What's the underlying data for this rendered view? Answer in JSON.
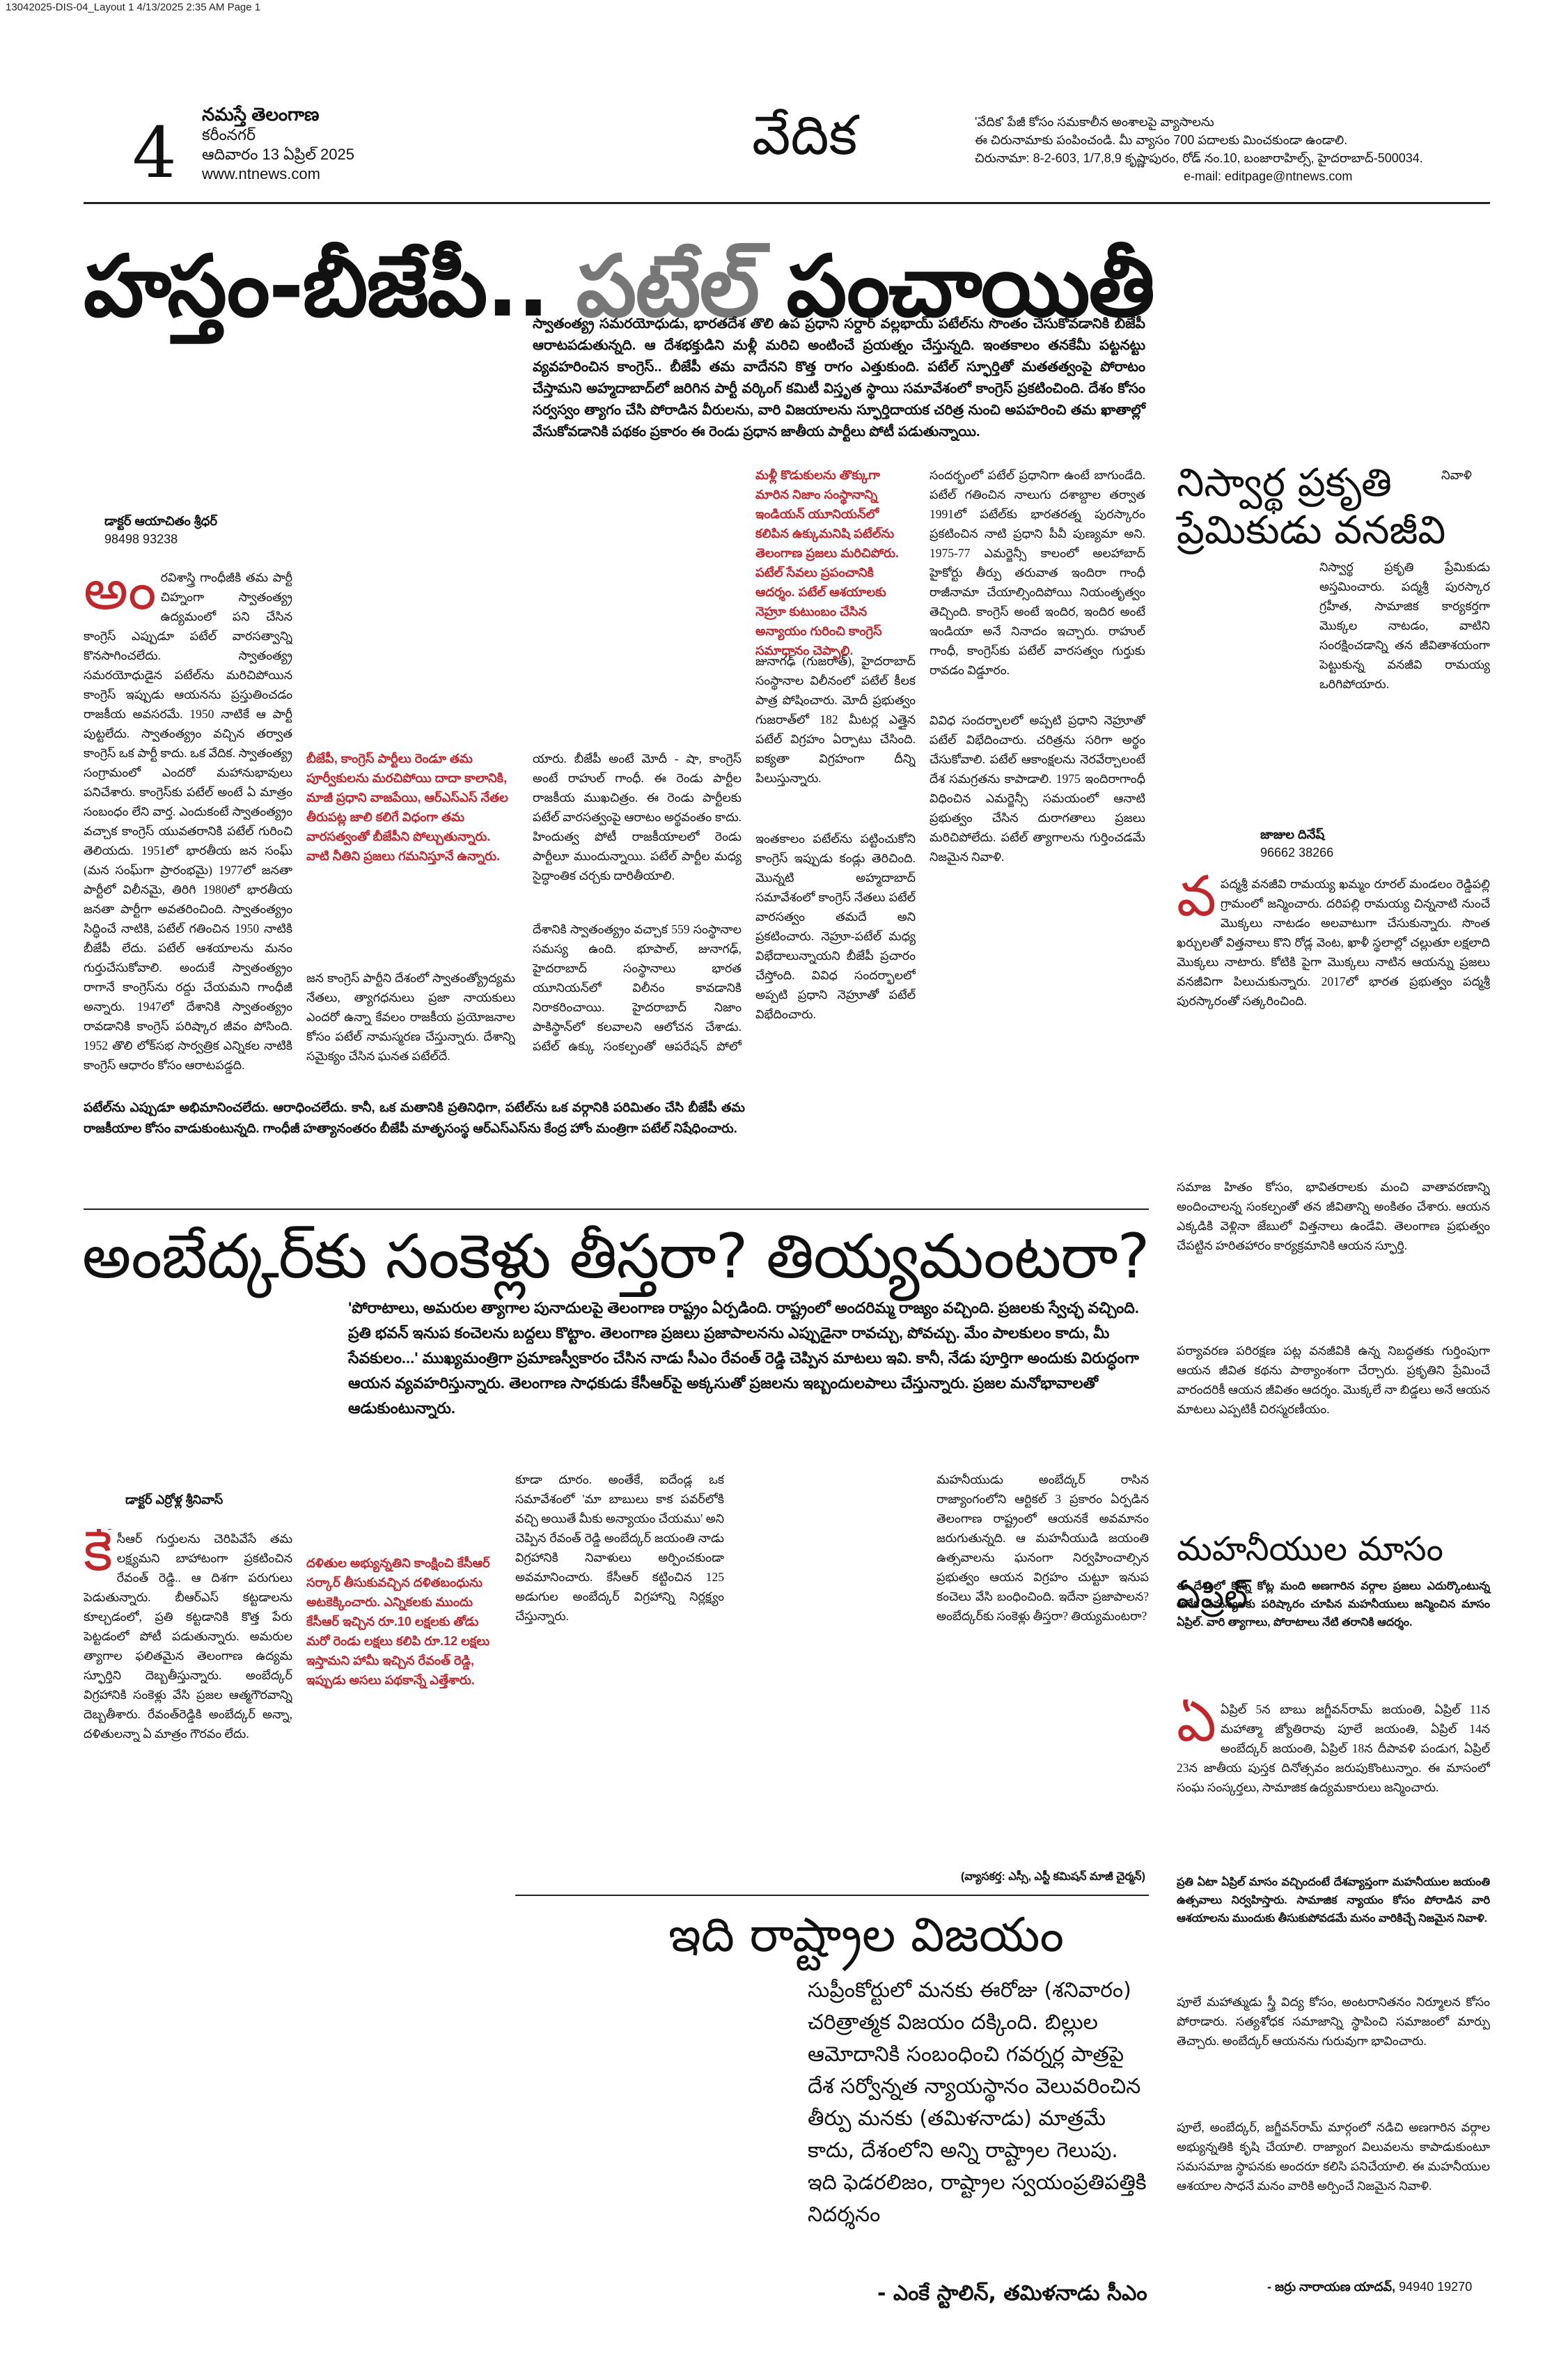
{
  "slug": "13042025-DIS-04_Layout 1  4/13/2025  2:35 AM  Page 1",
  "masthead": {
    "page_number": "4",
    "paper": "నమస్తే తెలంగాణ",
    "edition": "కరీంనగర్",
    "date": "ఆదివారం 13 ఏప్రిల్ 2025",
    "website": "www.ntnews.com",
    "section": "వేదిక",
    "note_line1": "'వేదిక' పేజీ కోసం సమకాలీన అంశాలపై వ్యాసాలను",
    "note_line2": "ఈ చిరునామాకు పంపించండి. మీ వ్యాసం 700 పదాలకు మించకుండా ఉండాలి.",
    "address": "చిరునామా: 8-2-603, 1/7,8,9 కృష్ణాపురం, రోడ్ నం.10, బంజారాహిల్స్, హైదరాబాద్-500034.",
    "email": "e-mail: editpage@ntnews.com"
  },
  "article1": {
    "headline_a": "హస్తం-బీజేపీ.. ",
    "headline_b": "పటేల్",
    "headline_c": " పంచాయితీ",
    "intro": "స్వాతంత్య్ర సమరయోధుడు, భారతదేశ తొలి ఉప ప్రధాని సర్దార్ వల్లభాయ్ పటేల్‌ను సొంతం చేసుకోవడానికి బీజేపీ ఆరాటపడుతున్నది. ఆ దేశభక్తుడిని మళ్లీ మరిచి అంటించే ప్రయత్నం చేస్తున్నది. ఇంతకాలం తనకేమీ పట్టనట్టు వ్యవహరించిన కాంగ్రెస్.. బీజేపీ తమ వాదేనని కొత్త రాగం ఎత్తుకుంది. పటేల్ స్ఫూర్తితో మతతత్వంపై పోరాటం చేస్తామని అహ్మదాబాద్‌లో జరిగిన పార్టీ వర్కింగ్ కమిటీ విస్తృత స్థాయి సమావేశంలో కాంగ్రెస్ ప్రకటించింది. దేశం కోసం సర్వస్వం త్యాగం చేసి పోరాడిన వీరులను, వారి విజయాలను స్ఫూర్తిదాయక చరిత్ర నుంచి అపహరించి తమ ఖాతాల్లో వేసుకోవడానికి పథకం ప్రకారం ఈ రెండు ప్రధాన జాతీయ పార్టీలు పోటీ పడుతున్నాయి.",
    "author": "డాక్టర్ ఆయాచితం శ్రీధర్",
    "phone": "98498 93238",
    "col1": "రవిశాస్త్రి గాంధీజీకి తమ పార్టీ చిహ్నంగా స్వాతంత్య్ర ఉద్యమంలో పని చేసిన కాంగ్రెస్ ఎప్పుడూ పటేల్ వారసత్వాన్ని కొనసాగించలేదు. స్వాతంత్య్ర సమరయోధుడైన పటేల్‌ను మరిచిపోయిన కాంగ్రెస్ ఇప్పుడు ఆయనను ప్రస్తుతించడం రాజకీయ అవసరమే. 1950 నాటికే ఆ పార్టీ పుట్టలేదు. స్వాతంత్య్రం వచ్చిన తర్వాత కాంగ్రెస్ ఒక పార్టీ కాదు. ఒక వేదిక. స్వాతంత్య్ర సంగ్రామంలో ఎందరో మహానుభావులు పనిచేశారు. కాంగ్రెస్‌కు పటేల్ అంటే ఏ మాత్రం సంబంధం లేని వార్త. ఎందుకంటే స్వాతంత్య్రం వచ్చాక కాంగ్రెస్ యువతరానికి పటేల్ గురించి తెలియదు. 1951లో భారతీయ జన సంఘ్ (మన సంఘ్‌గా ప్రారంభమై) 1977లో జనతా పార్టీలో విలీనమై, తిరిగి 1980లో భారతీయ జనతా పార్టీగా అవతరించింది. స్వాతంత్య్రం సిద్ధించే నాటికి, పటేల్ గతించిన 1950 నాటికి బీజేపీ లేదు. పటేల్ ఆశయాలను మనం గుర్తుచేసుకోవాలి. అందుకే స్వాతంత్య్రం రాగానే కాంగ్రెస్‌ను రద్దు చేయమని గాంధీజీ అన్నారు. 1947లో దేశానికి స్వాతంత్య్రం రావడానికి కాంగ్రెస్ పరిష్కార జీవం పోసింది. 1952 తొలి లోక్‌సభ సార్వత్రిక ఎన్నికల నాటికి కాంగ్రెస్ ఆధారం కోసం ఆరాటపడ్డది.",
    "pull1": "బీజేపీ, కాంగ్రెస్ పార్టీలు రెండూ తమ పూర్వీకులను మరచిపోయి దాదా కాలానికి, మాజీ ప్రధాని వాజపేయి, ఆర్‌ఎస్‌ఎస్ నేతల తీరుపట్ల జాలి కలిగే విధంగా తమ వారసత్వంతో బీజేపీని పోల్చుతున్నారు. వాటి నీతిని ప్రజలు గమనిస్తూనే ఉన్నారు.",
    "col2a": "యారు. బీజేపీ అంటే మోదీ - షా, కాంగ్రెస్ అంటే రాహుల్ గాంధీ. ఈ రెండు పార్టీల రాజకీయ ముఖచిత్రం. ఈ రెండు పార్టీలకు పటేల్ వారసత్వంపై ఆరాటం అర్థవంతం కాదు. హిందుత్వ పోటీ రాజకీయాలలో రెండు పార్టీలూ ముందున్నాయి. పటేల్ పార్టీల మధ్య సైద్ధాంతిక చర్చకు దారితీయాలి.",
    "col2b": "దేశానికి స్వాతంత్య్రం వచ్చాక 559 సంస్థానాల సమస్య ఉంది. భూపాల్, జునాగఢ్, హైదరాబాద్ సంస్థానాలు భారత యూనియన్‌లో విలీనం కావడానికి నిరాకరించాయి. హైదరాబాద్ నిజాం పాకిస్థాన్‌లో కలవాలని ఆలోచన చేశాడు. పటేల్ ఉక్కు సంకల్పంతో ఆపరేషన్ పోలో పేరిట 1948 సెప్టెంబర్‌లో పోలీసు చర్య చేపట్టారు.",
    "col2c": "జన కాంగ్రెస్ పార్టీని దేశంలో స్వాతంత్య్రోద్యమ నేతలు, త్యాగధనులు ప్రజా నాయకులు ఎందరో ఉన్నా కేవలం రాజకీయ ప్రయోజనాల కోసం పటేల్ నామస్మరణ చేస్తున్నారు. దేశాన్ని సమైక్యం చేసిన ఘనత పటేల్‌దే.",
    "pull2": "మళ్లీ కొడుకులను తొక్కుగా మారిన నిజాం సంస్థానాన్ని ఇండియన్ యూనియన్‌లో కలిపిన ఉక్కుమనిషి పటేల్‌ను తెలంగాణ ప్రజలు మరిచిపోరు. పటేల్ సేవలు ప్రపంచానికి ఆదర్శం. పటేల్ ఆశయాలకు నెహ్రూ కుటుంబం చేసిన అన్యాయం గురించి కాంగ్రెస్ సమాధానం చెప్పాలి.",
    "col3": "సందర్భంలో పటేల్ ప్రధానిగా ఉంటే బాగుండేది. పటేల్ గతించిన నాలుగు దశాబ్దాల తర్వాత 1991లో పటేల్‌కు భారతరత్న పురస్కారం ప్రకటించిన నాటి ప్రధాని పీవీ పుణ్యమా అని. 1975-77 ఎమర్జెన్సీ కాలంలో అలహాబాద్ హైకోర్టు తీర్పు తరువాత ఇందిరా గాంధీ రాజీనామా చేయాల్సిందిపోయి నియంతృత్వం తెచ్చింది. కాంగ్రెస్ అంటే ఇందిర, ఇందిర అంటే ఇండియా అనే నినాదం ఇచ్చారు. రాహుల్ గాంధీ, కాంగ్రెస్‌కు పటేల్ వారసత్వం గుర్తుకు రావడం విడ్డూరం.",
    "col3b": "జునాగఢ్ (గుజరాత్), హైదరాబాద్ సంస్థానాల విలీనంలో పటేల్ కీలక పాత్ర పోషించారు. మోదీ ప్రభుత్వం గుజరాత్‌లో 182 మీటర్ల ఎత్తైన పటేల్ విగ్రహం ఏర్పాటు చేసింది. ఐక్యతా విగ్రహంగా దీన్ని పిలుస్తున్నారు.",
    "col4": "ఇంతకాలం పటేల్‌ను పట్టించుకోని కాంగ్రెస్ ఇప్పుడు కండ్లు తెరిచింది. మొన్నటి అహ్మదాబాద్ సమావేశంలో కాంగ్రెస్ నేతలు పటేల్ వారసత్వం తమదే అని ప్రకటించారు. నెహ్రూ-పటేల్ మధ్య విభేదాలున్నాయని బీజేపీ ప్రచారం చేస్తోంది. వివిధ సందర్భాలలో అప్పటి ప్రధాని నెహ్రూతో పటేల్ విభేదించారు.",
    "col5": "వివిధ సందర్భాలలో అప్పటి ప్రధాని నెహ్రూతో పటేల్ విభేదించారు. చరిత్రను సరిగా అర్థం చేసుకోవాలి. పటేల్ ఆకాంక్షలను నెరవేర్చాలంటే దేశ సమగ్రతను కాపాడాలి. 1975 ఇందిరాగాంధీ విధించిన ఎమర్జెన్సీ సమయంలో ఆనాటి ప్రభుత్వం చేసిన దురాగతాలు ప్రజలు మరిచిపోలేదు. పటేల్ త్యాగాలను గుర్తించడమే నిజమైన నివాళి.",
    "bottom": "పటేల్‌ను ఎప్పుడూ అభిమానించలేదు. ఆరాధించలేదు. కానీ, ఒక మతానికి ప్రతినిధిగా, పటేల్‌ను ఒక వర్గానికి పరిమితం చేసి బీజేపీ తమ రాజకీయాల కోసం వాడుకుంటున్నది. గాంధీజీ హత్యానంతరం బీజేపీ మాతృసంస్థ ఆర్‌ఎస్‌ఎస్‌ను కేంద్ర హోం మంత్రిగా పటేల్ నిషేధించారు."
  },
  "article2": {
    "title_a": "నిస్వార్థ ప్రకృతి",
    "title_b": "ప్రేమికుడు వనజీవి",
    "tag": "నివాళి",
    "intro": "నిస్వార్థ ప్రకృతి ప్రేమికుడు అస్తమించారు. పద్మశ్రీ పురస్కార గ్రహీత, సామాజిక కార్యకర్తగా మొక్కల నాటడం, వాటిని సంరక్షించడాన్ని తన జీవితాశయంగా పెట్టుకున్న వనజీవి రామయ్య ఒరిగిపోయారు.",
    "author": "జాజుల దినేష్",
    "phone": "96662 38266",
    "body1": "పద్మశ్రీ వనజీవి రామయ్య ఖమ్మం రూరల్ మండలం రెడ్డిపల్లి గ్రామంలో జన్మించారు. దరిపల్లి రామయ్య చిన్ననాటి నుంచే మొక్కలు నాటడం అలవాటుగా చేసుకున్నారు. సొంత ఖర్చులతో విత్తనాలు కొని రోడ్ల వెంట, ఖాళీ స్థలాల్లో చల్లుతూ లక్షలాది మొక్కలు నాటారు. కోటికి పైగా మొక్కలు నాటిన ఆయన్ను ప్రజలు వనజీవిగా పిలుచుకున్నారు. 2017లో భారత ప్రభుత్వం పద్మశ్రీ పురస్కారంతో సత్కరించింది.",
    "body2": "సమాజ హితం కోసం, భావితరాలకు మంచి వాతావరణాన్ని అందించాలన్న సంకల్పంతో తన జీవితాన్ని అంకితం చేశారు. ఆయన ఎక్కడికి వెళ్లినా జేబులో విత్తనాలు ఉండేవి. తెలంగాణ ప్రభుత్వం చేపట్టిన హరితహారం కార్యక్రమానికి ఆయన స్ఫూర్తి.",
    "body3": "పర్యావరణ పరిరక్షణ పట్ల వనజీవికి ఉన్న నిబద్ధతకు గుర్తింపుగా ఆయన జీవిత కథను పాఠ్యాంశంగా చేర్చారు. ప్రకృతిని ప్రేమించే వారందరికీ ఆయన జీవితం ఆదర్శం. మొక్కలే నా బిడ్డలు అనే ఆయన మాటలు ఎప్పటికీ చిరస్మరణీయం."
  },
  "article3": {
    "headline": "అంబేద్కర్‌కు సంకెళ్లు తీస్తరా? తియ్యమంటరా?",
    "intro": "'పోరాటాలు, అమరుల త్యాగాల పునాదులపై తెలంగాణ రాష్ట్రం ఏర్పడింది. రాష్ట్రంలో అందరిమ్మ రాజ్యం వచ్చింది. ప్రజలకు స్వేచ్ఛ వచ్చింది. ప్రతి భవన్ ఇనుప కంచెలను బద్దలు కొట్టాం. తెలంగాణ ప్రజలు ప్రజాపాలనను ఎప్పుడైనా రావచ్చు, పోవచ్చు. మేం పాలకులం కాదు, మీ సేవకులం...' ముఖ్యమంత్రిగా ప్రమాణస్వీకారం చేసిన నాడు సీఎం రేవంత్ రెడ్డి చెప్పిన మాటలు ఇవి. కానీ, నేడు పూర్తిగా అందుకు విరుద్ధంగా ఆయన వ్యవహరిస్తున్నారు. తెలంగాణ సాధకుడు కేసీఆర్‌పై అక్కసుతో ప్రజలను ఇబ్బందులపాలు చేస్తున్నారు. ప్రజల మనోభావాలతో ఆడుకుంటున్నారు.",
    "author": "డాక్టర్ ఎర్రోళ్ల శ్రీనివాస్",
    "col1": "సీఆర్ గుర్తులను చెరిపివేసే తమ లక్ష్యమని బాహాటంగా ప్రకటించిన రేవంత్ రెడ్డి.. ఆ దిశగా పరుగులు పెడుతున్నారు. బీఆర్‌ఎస్ కట్టడాలను కూల్చడంలో, ప్రతి కట్టడానికి కొత్త పేరు పెట్టడంలో పోటీ పడుతున్నారు. అమరుల త్యాగాల ఫలితమైన తెలంగాణ ఉద్యమ స్ఫూర్తిని దెబ్బతీస్తున్నారు. అంబేద్కర్ విగ్రహానికి సంకెళ్లు వేసి ప్రజల ఆత్మగౌరవాన్ని దెబ్బతీశారు. రేవంత్‌రెడ్డికి అంబేద్కర్ అన్నా, దళితులన్నా ఏ మాత్రం గౌరవం లేదు.",
    "pull": "దళితుల అభ్యున్నతిని కాంక్షించి కేసీఆర్ సర్కార్ తీసుకువచ్చిన దళితబంధును అటకెక్కించారు. ఎన్నికలకు ముందు కేసీఆర్ ఇచ్చిన రూ.10 లక్షలకు తోడు మరో రెండు లక్షలు కలిపి రూ.12 లక్షలు ఇస్తామని హామీ ఇచ్చిన రేవంత్ రెడ్డి, ఇప్పుడు అసలు పథకాన్నే ఎత్తేశారు.",
    "col2": "కూడా దూరం. అంతేకే, ఐదేండ్ల ఒక సమావేశంలో 'మా బాబులు కాక పవర్‌లోకి వచ్చి అయితే మీకు అన్యాయం చేయము' అని చెప్పిన రేవంత్ రెడ్డి అంబేద్కర్ జయంతి నాడు విగ్రహానికి నివాళులు అర్పించకుండా అవమానించారు. కేసీఆర్ కట్టించిన 125 అడుగుల అంబేద్కర్ విగ్రహాన్ని నిర్లక్ష్యం చేస్తున్నారు.",
    "col3": "మహనీయుడు అంబేద్కర్ రాసిన రాజ్యాంగంలోని ఆర్టికల్ 3 ప్రకారం ఏర్పడిన తెలంగాణ రాష్ట్రంలో ఆయనకే అవమానం జరుగుతున్నది. ఆ మహనీయుడి జయంతి ఉత్సవాలను ఘనంగా నిర్వహించాల్సిన ప్రభుత్వం ఆయన విగ్రహం చుట్టూ ఇనుప కంచెలు వేసి బంధించింది. ఇదేనా ప్రజాపాలన? అంబేద్కర్‌కు సంకెళ్లు తీస్తరా? తియ్యమంటరా?",
    "credit": "(వ్యాసకర్త: ఎస్సీ, ఎస్టీ కమిషన్ మాజీ చైర్మన్)"
  },
  "article4": {
    "title": "మహనీయుల మాసం ఏప్రిల్",
    "intro": "ఈ దేశంలో కొన్ని కోట్ల మంది అణగారిన వర్గాల ప్రజలు ఎదుర్కొంటున్న అనేక సమస్యలకు పరిష్కారం చూపిన మహనీయులు జన్మించిన మాసం ఏప్రిల్. వారి త్యాగాలు, పోరాటాలు నేటి తరానికి ఆదర్శం.",
    "body1": "ఏప్రిల్ 5న బాబు జగ్జీవన్‌రామ్ జయంతి, ఏప్రిల్ 11న మహాత్మా జ్యోతిరావు పూలే జయంతి, ఏప్రిల్ 14న అంబేద్కర్ జయంతి, ఏప్రిల్ 18న దీపావళి పండుగ, ఏప్రిల్ 23న జాతీయ పుస్తక దినోత్సవం జరుపుకొంటున్నాం. ఈ మాసంలో సంఘ సంస్కర్తలు, సామాజిక ఉద్యమకారులు జన్మించారు.",
    "body2": "ప్రతి ఏటా ఏప్రిల్ మాసం వచ్చిందంటే దేశవ్యాప్తంగా మహనీయుల జయంతి ఉత్సవాలు నిర్వహిస్తారు. సామాజిక న్యాయం కోసం పోరాడిన వారి ఆశయాలను ముందుకు తీసుకుపోవడమే మనం వారికిచ్చే నిజమైన నివాళి.",
    "body3": "పూలే మహాత్ముడు స్త్రీ విద్య కోసం, అంటరానితనం నిర్మూలన కోసం పోరాడారు. సత్యశోధక సమాజాన్ని స్థాపించి సమాజంలో మార్పు తెచ్చారు. అంబేద్కర్ ఆయనను గురువుగా భావించారు.",
    "body4": "పూలే, అంబేద్కర్, జగ్జీవన్‌రామ్ మార్గంలో నడిచి అణగారిన వర్గాల అభ్యున్నతికి కృషి చేయాలి. రాజ్యాంగ విలువలను కాపాడుకుంటూ సమసమాజ స్థాపనకు అందరూ కలిసి పనిచేయాలి. ఈ మహనీయుల ఆశయాల సాధనే మనం వారికి అర్పించే నిజమైన నివాళి.",
    "author": "- జర్రు నారాయణ యాదవ్,",
    "phone": "94940 19270"
  },
  "quote": {
    "title": "ఇది రాష్ట్రాల విజయం",
    "body": "సుప్రీంకోర్టులో మనకు ఈరోజు (శనివారం) చరిత్రాత్మక విజయం దక్కింది. బిల్లుల ఆమోదానికి సంబంధించి గవర్నర్ల పాత్రపై దేశ సర్వోన్నత న్యాయస్థానం వెలువరించిన తీర్పు మనకు (తమిళనాడు) మాత్రమే కాదు, దేశంలోని అన్ని రాష్ట్రాల గెలుపు. ఇది ఫెడరలిజం, రాష్ట్రాల స్వయంప్రతిపత్తికి నిదర్శనం",
    "signature": "- ఎంకే స్టాలిన్, తమిళనాడు సీఎం"
  },
  "colors": {
    "accent_red": "#c0272d",
    "text": "#111111",
    "muted": "#777777"
  }
}
